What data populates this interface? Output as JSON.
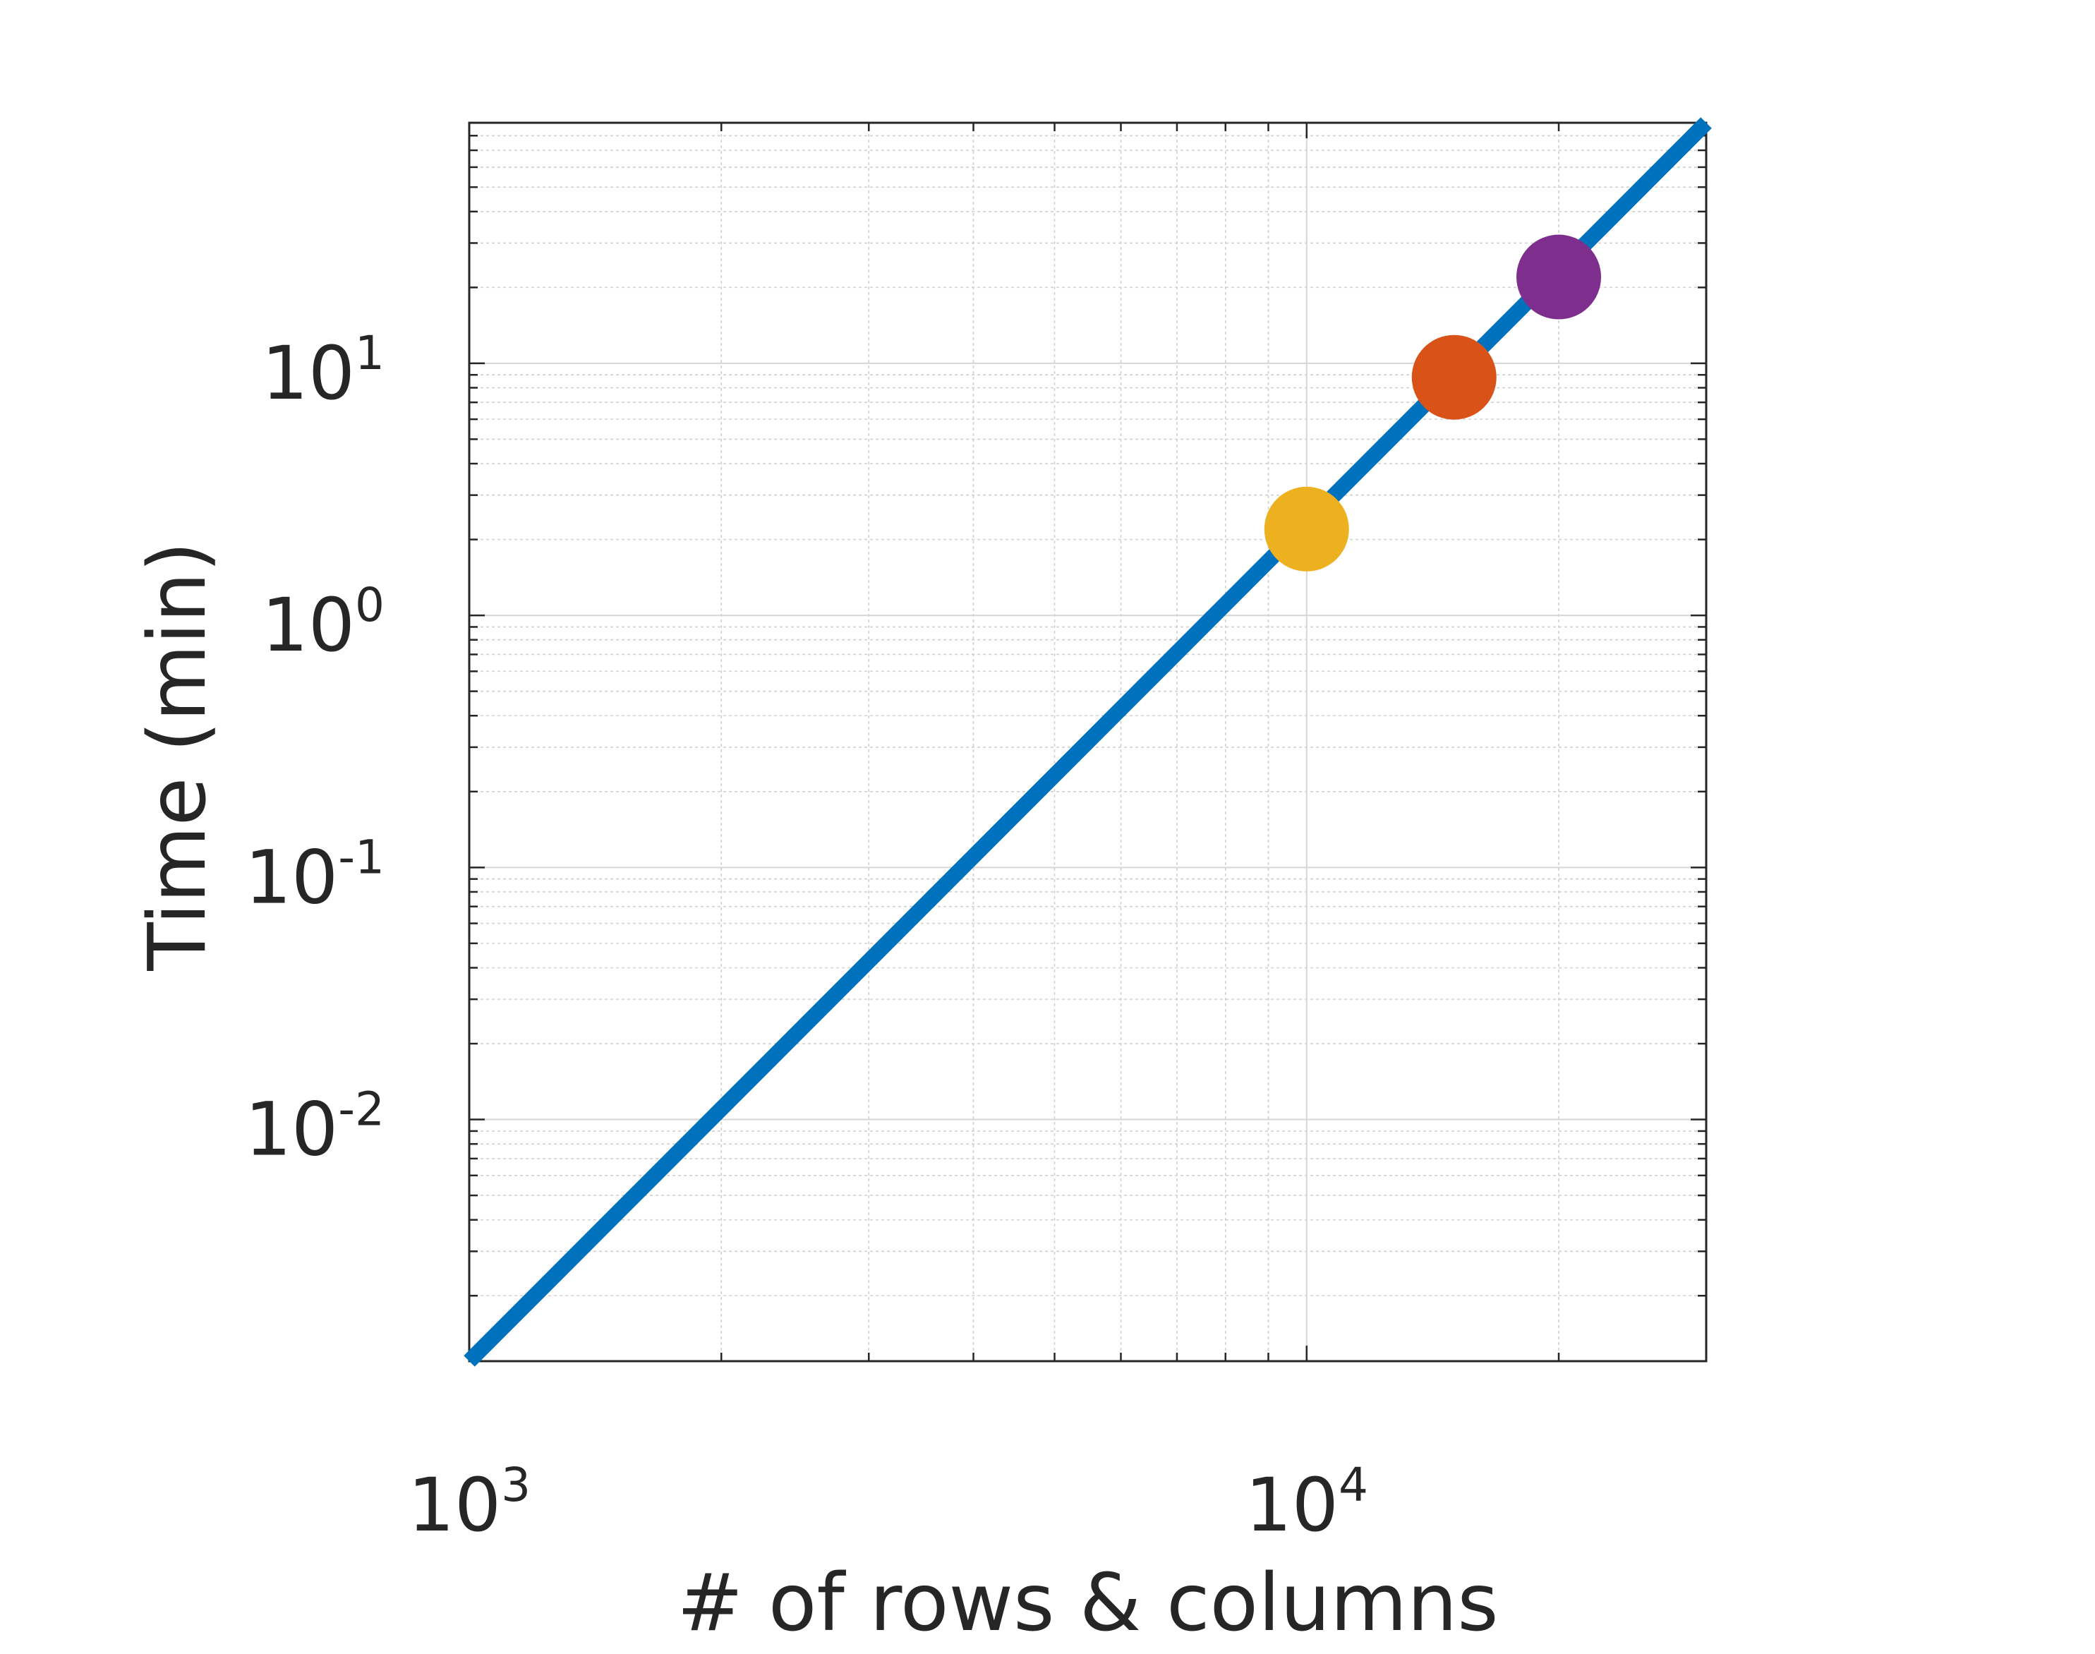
{
  "chart_data": {
    "type": "line",
    "title": "",
    "xlabel": "# of rows & columns",
    "ylabel": "Time (min)",
    "x_scale": "log",
    "y_scale": "log",
    "xlim": [
      1000,
      30000
    ],
    "ylim": [
      0.0011,
      90
    ],
    "grid": true,
    "minor_grid": true,
    "x_ticks": [
      {
        "base": "10",
        "exp": "3",
        "value": 1000
      },
      {
        "base": "10",
        "exp": "4",
        "value": 10000
      }
    ],
    "y_ticks": [
      {
        "base": "10",
        "exp": "-2",
        "value": 0.01
      },
      {
        "base": "10",
        "exp": "-1",
        "value": 0.1
      },
      {
        "base": "10",
        "exp": "0",
        "value": 1
      },
      {
        "base": "10",
        "exp": "1",
        "value": 10
      }
    ],
    "series": [
      {
        "kind": "line",
        "color": "#0072BD",
        "x": [
          1000,
          30000
        ],
        "y": [
          0.0011,
          90
        ]
      }
    ],
    "markers": [
      {
        "x": 10000,
        "y": 2.2,
        "color": "#EDB120"
      },
      {
        "x": 15000,
        "y": 8.8,
        "color": "#D95319"
      },
      {
        "x": 20000,
        "y": 22,
        "color": "#7E2F8E"
      }
    ]
  }
}
